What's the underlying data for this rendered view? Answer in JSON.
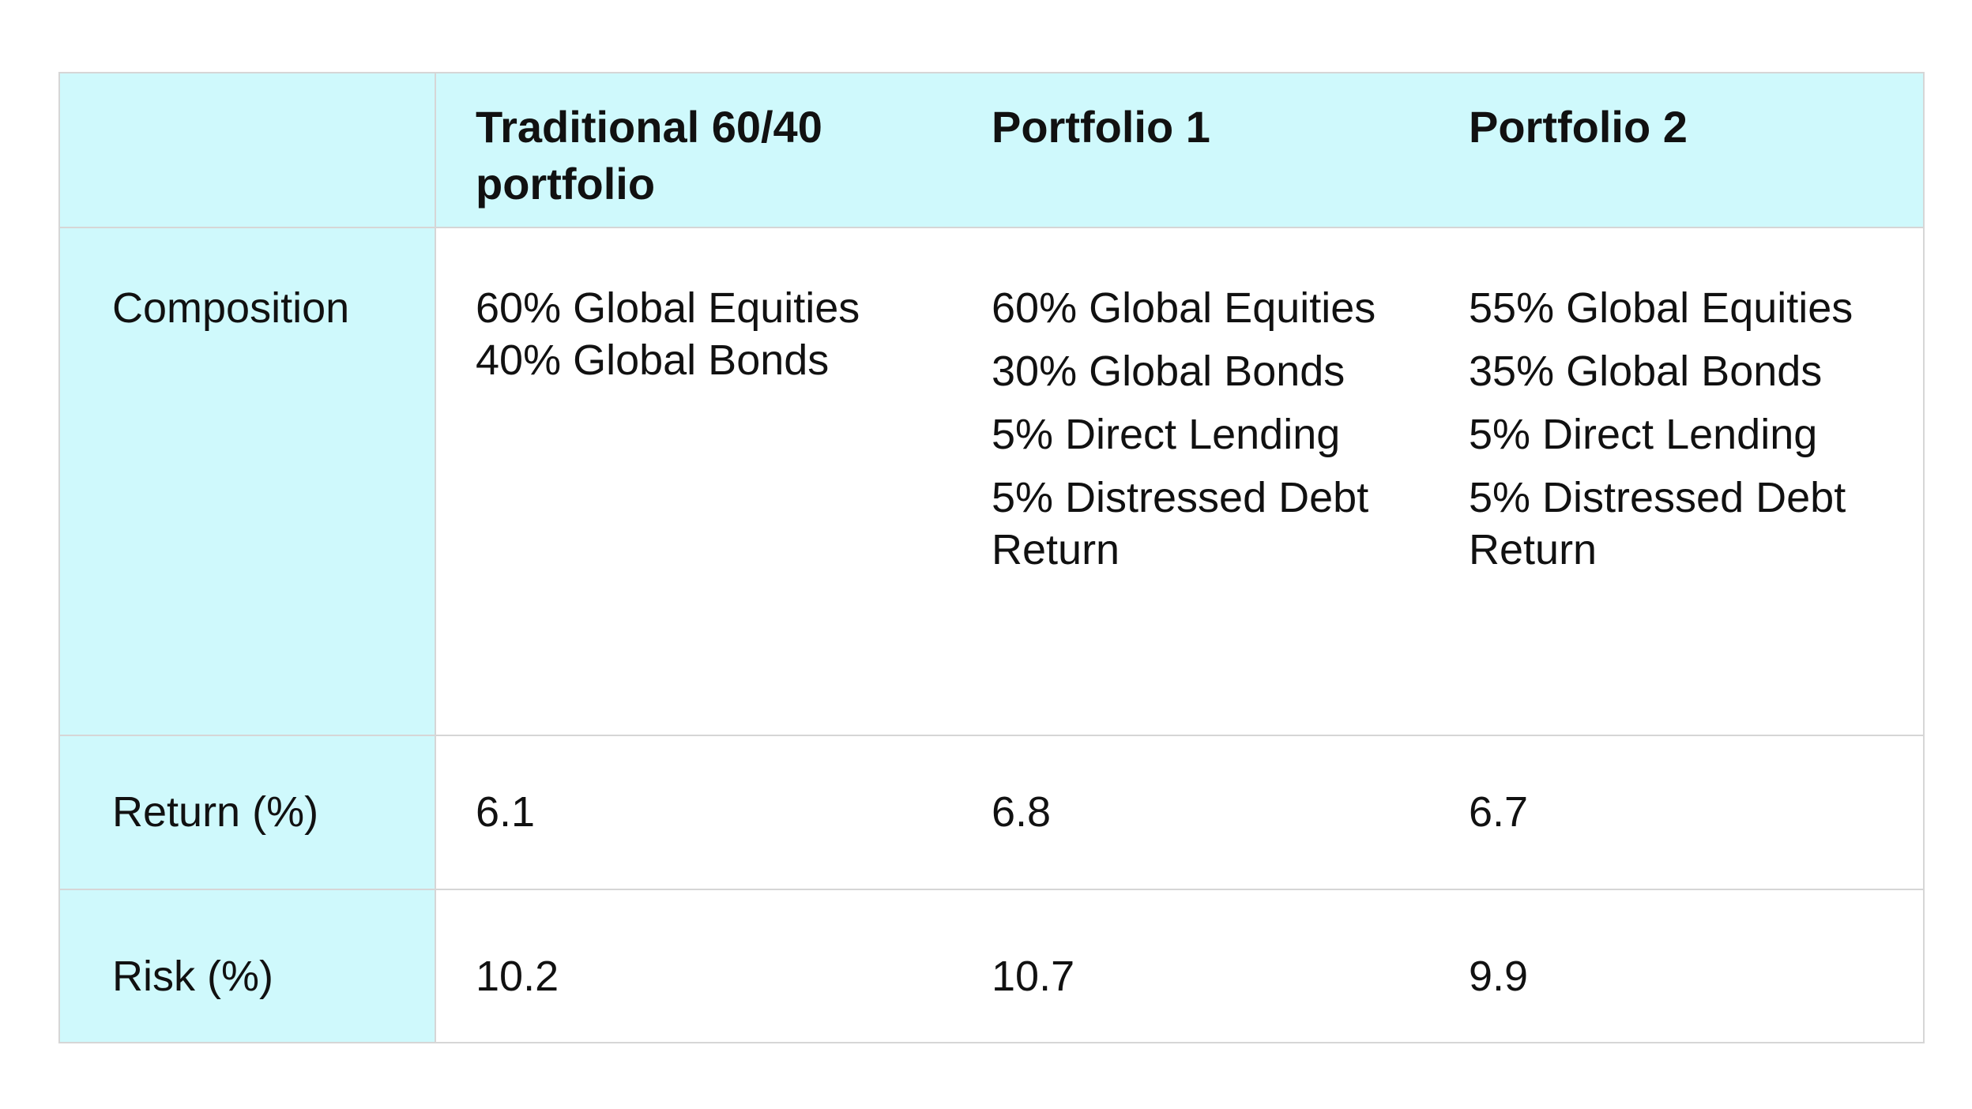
{
  "header": {
    "col0": "",
    "col1_line1": "Traditional 60/40",
    "col1_line2": "portfolio",
    "col2": "Portfolio 1",
    "col3": "Portfolio 2"
  },
  "rows": {
    "composition": {
      "label": "Composition",
      "traditional": [
        "60% Global Equities",
        "40% Global Bonds"
      ],
      "portfolio1": [
        "60% Global Equities",
        "30% Global Bonds",
        "5% Direct Lending",
        "5% Distressed Debt",
        "Return"
      ],
      "portfolio2": [
        "55% Global Equities",
        "35% Global Bonds",
        "5% Direct Lending",
        "5% Distressed Debt",
        "Return"
      ]
    },
    "return": {
      "label": "Return (%)",
      "traditional": "6.1",
      "portfolio1": "6.8",
      "portfolio2": "6.7"
    },
    "risk": {
      "label": "Risk (%)",
      "traditional": "10.2",
      "portfolio1": "10.7",
      "portfolio2": "9.9"
    }
  },
  "colors": {
    "highlight": "#cff9fc",
    "border": "#d6d6d6",
    "text": "#111111"
  }
}
